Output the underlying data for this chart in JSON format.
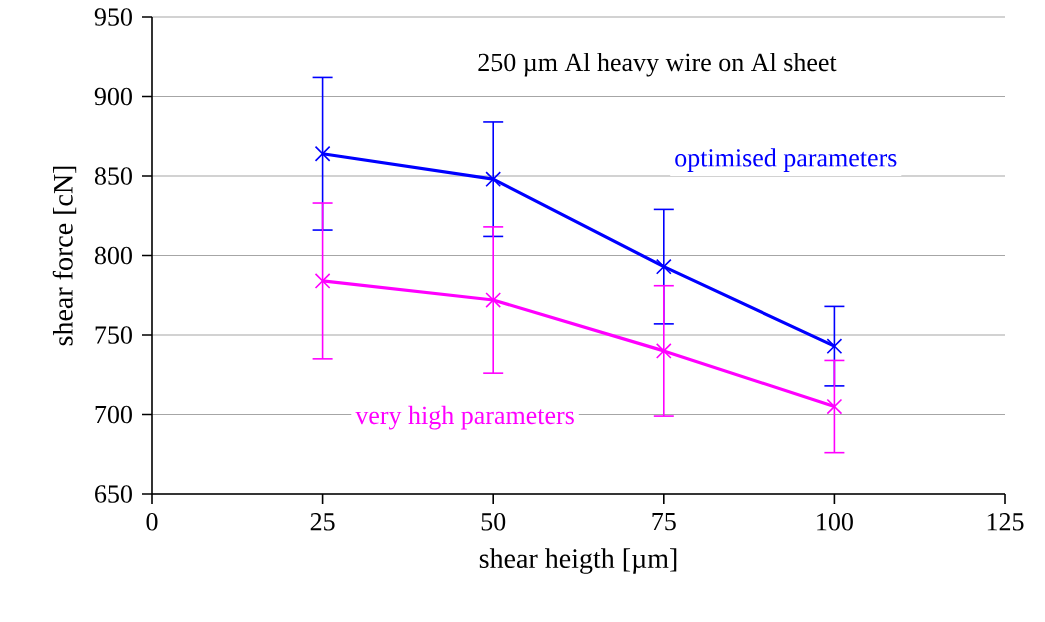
{
  "chart_data": {
    "type": "line",
    "title": "250 µm Al heavy wire on Al sheet",
    "xlabel": "shear heigth [µm]",
    "ylabel": "shear force [cN]",
    "x": [
      25,
      50,
      75,
      100
    ],
    "series": [
      {
        "name": "optimised parameters",
        "color": "#0000ff",
        "values": [
          864,
          848,
          793,
          743
        ],
        "errors": [
          48,
          36,
          36,
          25
        ]
      },
      {
        "name": "very high parameters",
        "color": "#ff00ff",
        "values": [
          784,
          772,
          740,
          705
        ],
        "errors": [
          49,
          46,
          41,
          29
        ]
      }
    ],
    "xlim": [
      0,
      125
    ],
    "xticks": [
      0,
      25,
      50,
      75,
      100,
      125
    ],
    "ylim": [
      650,
      950
    ],
    "yticks": [
      650,
      700,
      750,
      800,
      850,
      900,
      950
    ],
    "grid": "y",
    "marker": "cross",
    "line_style": "solid"
  }
}
